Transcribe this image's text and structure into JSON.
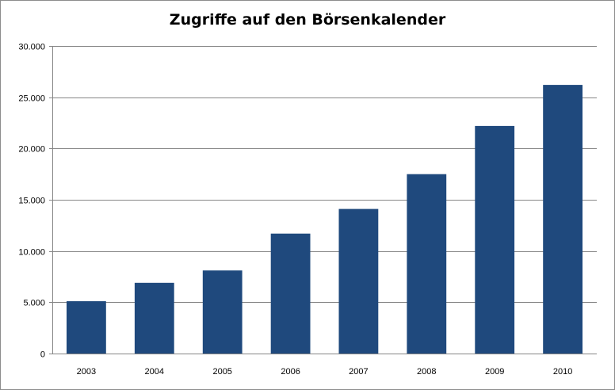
{
  "chart_data": {
    "type": "bar",
    "title": "Zugriffe auf den Börsenkalender",
    "xlabel": "",
    "ylabel": "",
    "categories": [
      "2003",
      "2004",
      "2005",
      "2006",
      "2007",
      "2008",
      "2009",
      "2010"
    ],
    "values": [
      5100,
      6900,
      8100,
      11700,
      14100,
      17500,
      22200,
      26200
    ],
    "ylim": [
      0,
      30000
    ],
    "yticks": [
      0,
      5000,
      10000,
      15000,
      20000,
      25000,
      30000
    ],
    "ytick_labels": [
      "0",
      "5.000",
      "10.000",
      "15.000",
      "20.000",
      "25.000",
      "30.000"
    ],
    "grid": true,
    "legend": "none",
    "bar_color": "#1f497d"
  }
}
